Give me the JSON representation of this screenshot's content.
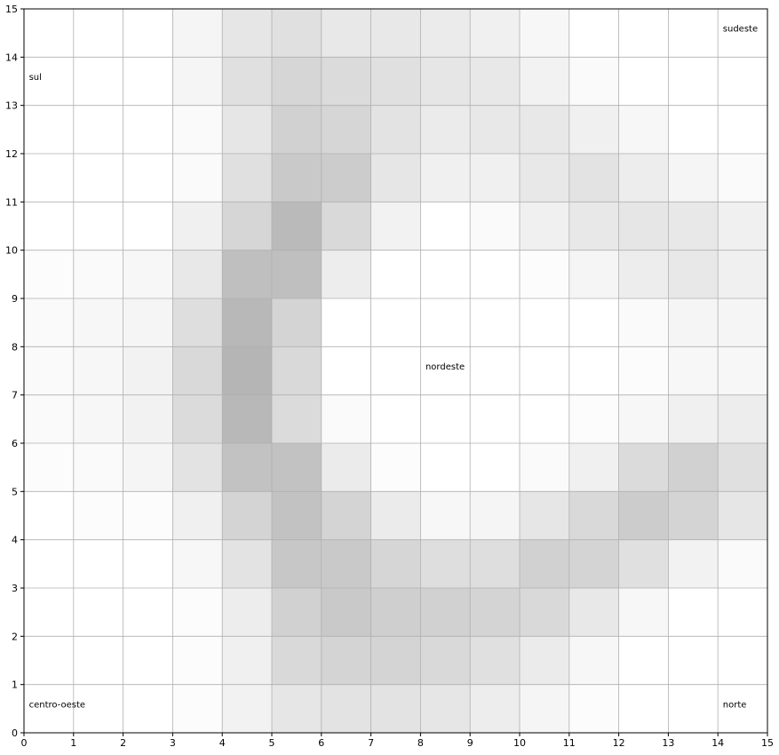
{
  "chart_data": {
    "type": "heatmap",
    "title": "",
    "xlabel": "",
    "ylabel": "",
    "xlim": [
      0,
      15
    ],
    "ylim": [
      0,
      15
    ],
    "grid": true,
    "colormap": "greys",
    "value_range": [
      0,
      1
    ],
    "xticks": [
      "0",
      "1",
      "2",
      "3",
      "4",
      "5",
      "6",
      "7",
      "8",
      "9",
      "10",
      "11",
      "12",
      "13",
      "14",
      "15"
    ],
    "yticks": [
      "0",
      "1",
      "2",
      "3",
      "4",
      "5",
      "6",
      "7",
      "8",
      "9",
      "10",
      "11",
      "12",
      "13",
      "14",
      "15"
    ],
    "row_order": "top-to-bottom (row 0 spans y 14–15)",
    "cells": [
      [
        0.0,
        0.0,
        0.0,
        0.04,
        0.1,
        0.12,
        0.09,
        0.09,
        0.08,
        0.06,
        0.03,
        0.0,
        0.0,
        0.0,
        0.0
      ],
      [
        0.0,
        0.0,
        0.0,
        0.04,
        0.12,
        0.16,
        0.14,
        0.12,
        0.1,
        0.09,
        0.05,
        0.02,
        0.0,
        0.0,
        0.0
      ],
      [
        0.0,
        0.0,
        0.0,
        0.02,
        0.1,
        0.18,
        0.16,
        0.11,
        0.08,
        0.09,
        0.09,
        0.06,
        0.03,
        0.0,
        0.0
      ],
      [
        0.0,
        0.0,
        0.0,
        0.02,
        0.12,
        0.21,
        0.2,
        0.1,
        0.06,
        0.06,
        0.09,
        0.11,
        0.07,
        0.04,
        0.02
      ],
      [
        0.0,
        0.0,
        0.0,
        0.06,
        0.16,
        0.27,
        0.15,
        0.05,
        0.0,
        0.02,
        0.06,
        0.09,
        0.1,
        0.09,
        0.06
      ],
      [
        0.01,
        0.02,
        0.03,
        0.09,
        0.25,
        0.25,
        0.07,
        0.0,
        0.0,
        0.0,
        0.01,
        0.04,
        0.07,
        0.09,
        0.06
      ],
      [
        0.02,
        0.03,
        0.04,
        0.13,
        0.28,
        0.17,
        0.0,
        0.0,
        0.0,
        0.0,
        0.0,
        0.0,
        0.02,
        0.04,
        0.04
      ],
      [
        0.02,
        0.03,
        0.05,
        0.15,
        0.29,
        0.15,
        0.0,
        0.0,
        0.0,
        0.0,
        0.0,
        0.0,
        0.01,
        0.03,
        0.03
      ],
      [
        0.02,
        0.03,
        0.05,
        0.14,
        0.28,
        0.14,
        0.02,
        0.0,
        0.0,
        0.0,
        0.0,
        0.01,
        0.03,
        0.06,
        0.07
      ],
      [
        0.01,
        0.02,
        0.04,
        0.11,
        0.24,
        0.24,
        0.08,
        0.01,
        0.0,
        0.0,
        0.02,
        0.06,
        0.14,
        0.18,
        0.12
      ],
      [
        0.0,
        0.01,
        0.01,
        0.06,
        0.17,
        0.24,
        0.17,
        0.08,
        0.03,
        0.04,
        0.1,
        0.15,
        0.2,
        0.17,
        0.1
      ],
      [
        0.0,
        0.0,
        0.0,
        0.03,
        0.11,
        0.22,
        0.21,
        0.16,
        0.13,
        0.13,
        0.18,
        0.17,
        0.12,
        0.05,
        0.02
      ],
      [
        0.0,
        0.0,
        0.0,
        0.01,
        0.07,
        0.18,
        0.21,
        0.19,
        0.18,
        0.17,
        0.15,
        0.09,
        0.03,
        0.0,
        0.0
      ],
      [
        0.0,
        0.0,
        0.0,
        0.01,
        0.06,
        0.15,
        0.17,
        0.17,
        0.15,
        0.12,
        0.08,
        0.03,
        0.0,
        0.0,
        0.0
      ],
      [
        0.0,
        0.0,
        0.0,
        0.01,
        0.05,
        0.1,
        0.11,
        0.11,
        0.1,
        0.07,
        0.04,
        0.01,
        0.0,
        0.0,
        0.0
      ]
    ],
    "annotations": [
      {
        "text": "sudeste",
        "x": 14.1,
        "y": 14.6
      },
      {
        "text": "sul",
        "x": 0.1,
        "y": 13.6
      },
      {
        "text": "nordeste",
        "x": 8.1,
        "y": 7.6
      },
      {
        "text": "centro-oeste",
        "x": 0.1,
        "y": 0.6
      },
      {
        "text": "norte",
        "x": 14.1,
        "y": 0.6
      }
    ]
  }
}
